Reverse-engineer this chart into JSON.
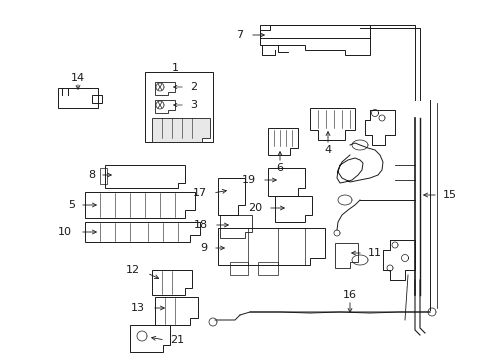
{
  "bg_color": "#ffffff",
  "line_color": "#1a1a1a",
  "text_color": "#1a1a1a",
  "fig_width": 4.89,
  "fig_height": 3.6,
  "dpi": 100
}
